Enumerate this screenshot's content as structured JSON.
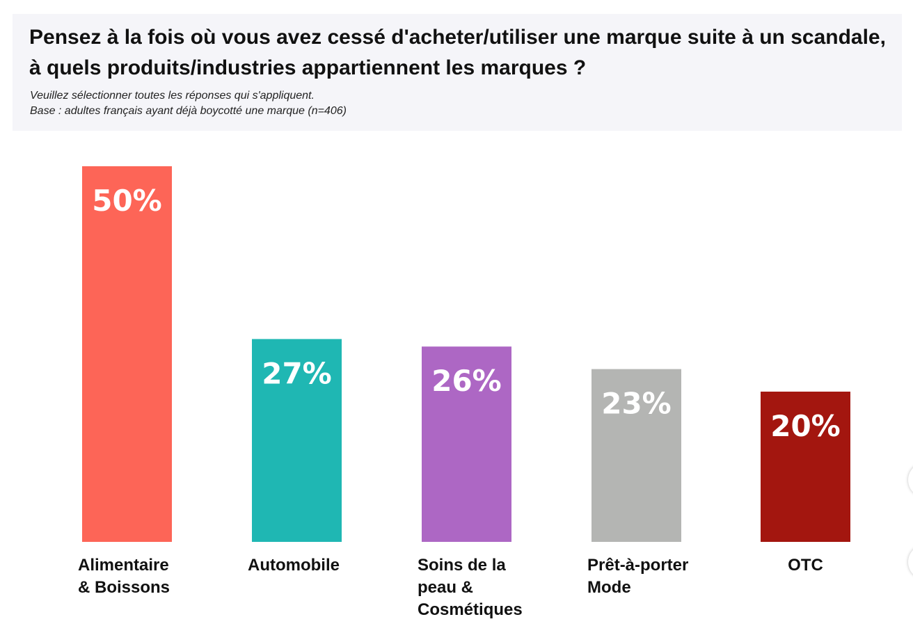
{
  "header": {
    "title": "Pensez à la fois où vous avez cessé d'acheter/utiliser une marque suite à un scandale, à quels produits/industries appartiennent les marques ?",
    "instruction": "Veuillez sélectionner toutes les réponses qui s'appliquent.",
    "base": "Base : adultes français ayant déjà boycotté une marque (n=406)"
  },
  "chart_data": {
    "type": "bar",
    "title": "Pensez à la fois où vous avez cessé d'acheter/utiliser une marque suite à un scandale, à quels produits/industries appartiennent les marques ?",
    "categories": [
      [
        "Alimentaire",
        "& Boissons"
      ],
      [
        "Automobile"
      ],
      [
        "Soins de la",
        "peau &",
        "Cosmétiques"
      ],
      [
        "Prêt-à-porter",
        "Mode"
      ],
      [
        "OTC"
      ]
    ],
    "values": [
      50,
      27,
      26,
      23,
      20
    ],
    "data_labels": [
      "50%",
      "27%",
      "26%",
      "23%",
      "20%"
    ],
    "colors": [
      "#fd6557",
      "#1fb7b3",
      "#ad67c4",
      "#b4b5b3",
      "#a3160f"
    ],
    "unit": "%",
    "ylim": [
      0,
      50
    ],
    "grid": false,
    "legend": "none"
  }
}
